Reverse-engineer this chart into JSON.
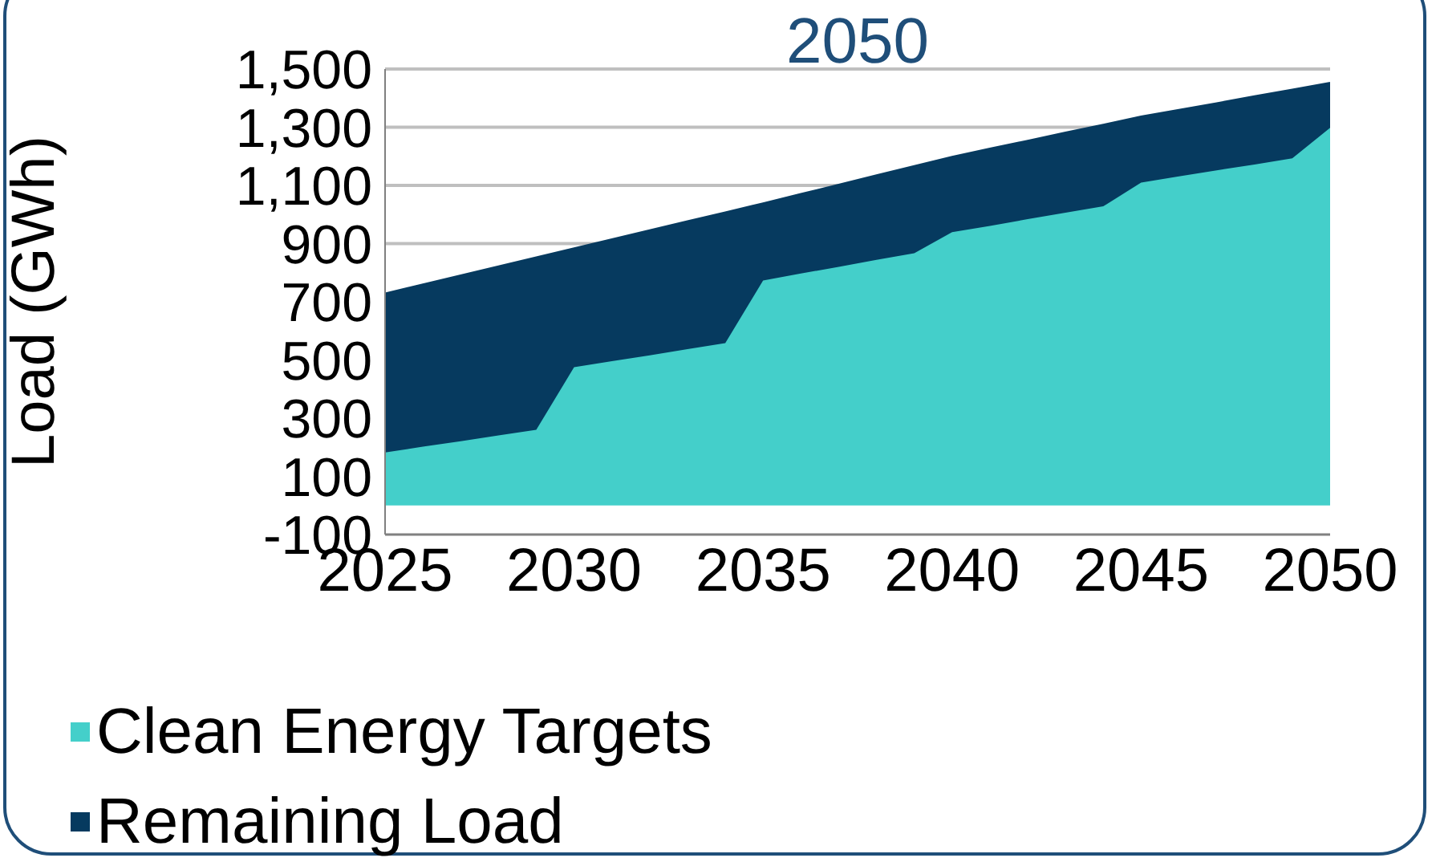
{
  "chart_data": {
    "type": "area",
    "title": "2050",
    "ylabel": "Load (GWh)",
    "stacked": true,
    "grid": "y",
    "legend": "bottom",
    "x": [
      2025,
      2026,
      2027,
      2028,
      2029,
      2030,
      2031,
      2032,
      2033,
      2034,
      2035,
      2036,
      2037,
      2038,
      2039,
      2040,
      2041,
      2042,
      2043,
      2044,
      2045,
      2046,
      2047,
      2048,
      2049,
      2050
    ],
    "xlim": [
      2025,
      2050
    ],
    "xticks": [
      2025,
      2030,
      2035,
      2040,
      2045,
      2050
    ],
    "ylim": [
      -100,
      1500
    ],
    "yticks": [
      -100,
      100,
      300,
      500,
      700,
      900,
      {
        "value": 1100,
        "label": "1,100"
      },
      {
        "value": 1300,
        "label": "1,300"
      },
      {
        "value": 1500,
        "label": "1,500"
      }
    ],
    "series": [
      {
        "name": "Clean Energy Targets",
        "color": "#44cfca",
        "values": [
          182,
          202,
          221,
          241,
          260,
          475,
          496,
          516,
          537,
          558,
          773,
          797,
          820,
          844,
          867,
          939,
          961,
          984,
          1006,
          1028,
          1110,
          1131,
          1152,
          1172,
          1193,
          1298
        ]
      },
      {
        "name": "Remaining Load",
        "color": "#063a5f",
        "values": [
          547,
          558,
          570,
          581,
          593,
          409,
          419,
          430,
          440,
          450,
          266,
          274,
          283,
          291,
          300,
          260,
          266,
          270,
          276,
          281,
          227,
          229,
          231,
          235,
          237,
          155
        ]
      }
    ]
  }
}
